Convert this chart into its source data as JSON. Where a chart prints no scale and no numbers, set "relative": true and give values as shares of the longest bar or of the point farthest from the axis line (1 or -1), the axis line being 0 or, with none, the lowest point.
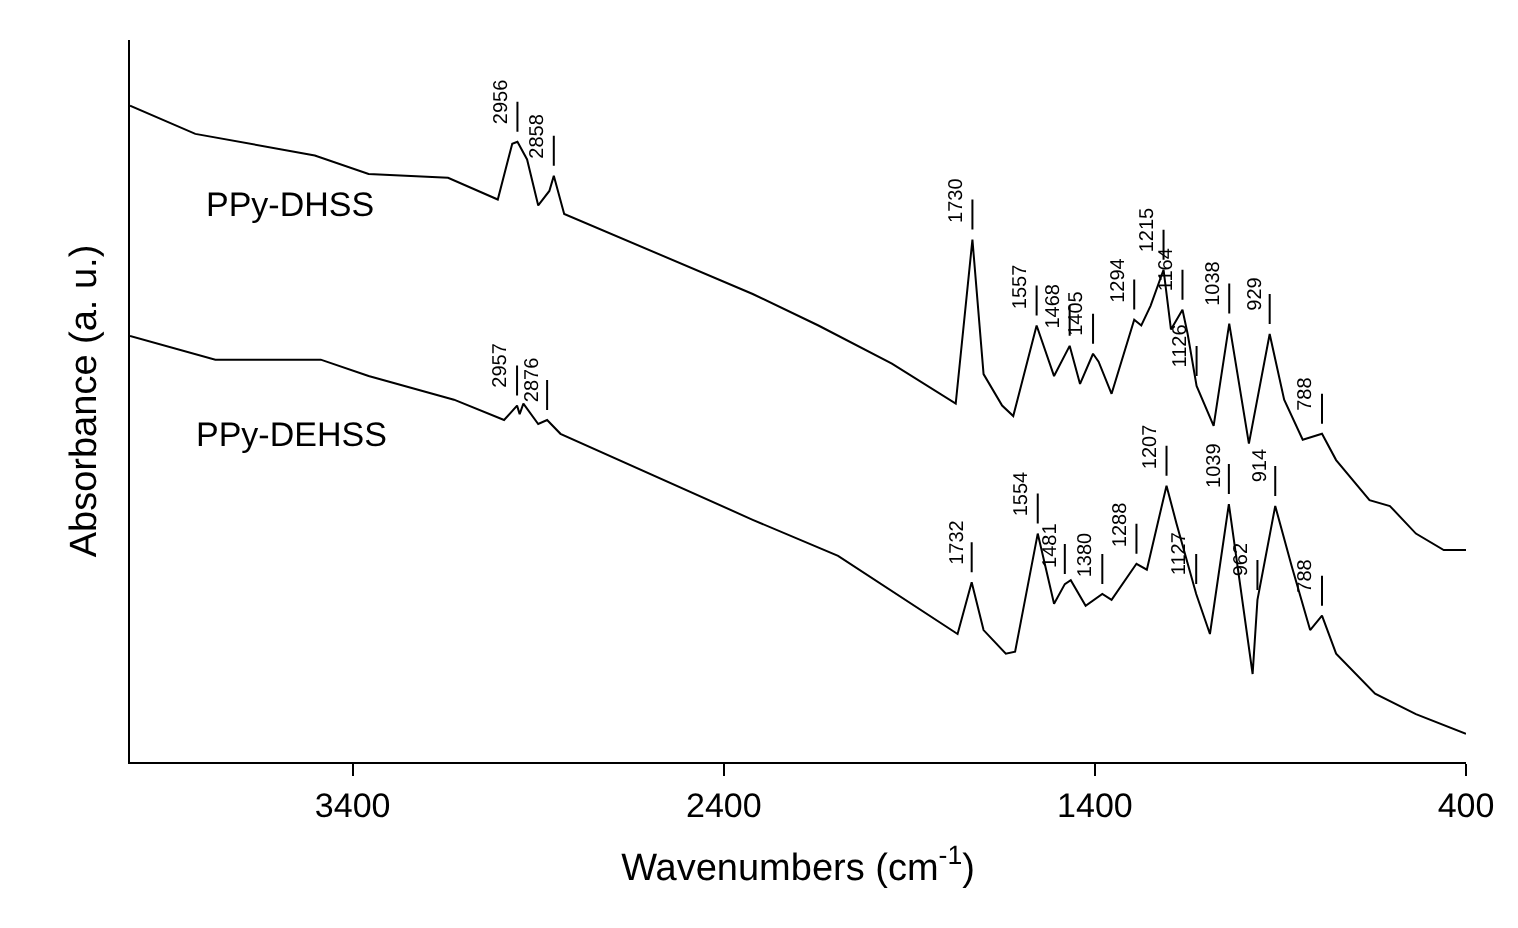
{
  "chart_data": {
    "type": "line",
    "relative": true,
    "xlabel": "Wavenumbers (cm$^{-1}$)",
    "ylabel": "Absorbance (a. u.)",
    "xlim": [
      4000,
      400
    ],
    "xticks": [
      3400,
      2400,
      1400,
      400
    ],
    "legend": false,
    "marker": "none",
    "line_style": "solid",
    "series": [
      {
        "name": "PPy-DHSS",
        "color": "#000000",
        "x": [
          4000,
          3824,
          3502,
          3357,
          3143,
          3009,
          2970,
          2956,
          2930,
          2900,
          2870,
          2858,
          2830,
          2322,
          2145,
          1947,
          1775,
          1730,
          1700,
          1650,
          1620,
          1557,
          1510,
          1468,
          1440,
          1405,
          1390,
          1355,
          1294,
          1275,
          1250,
          1215,
          1195,
          1164,
          1150,
          1126,
          1080,
          1038,
          985,
          929,
          890,
          840,
          788,
          750,
          660,
          605,
          535,
          460,
          400
        ],
        "values": [
          1.0,
          0.957,
          0.924,
          0.896,
          0.89,
          0.857,
          0.942,
          0.945,
          0.918,
          0.848,
          0.87,
          0.893,
          0.835,
          0.713,
          0.665,
          0.607,
          0.546,
          0.796,
          0.591,
          0.543,
          0.527,
          0.665,
          0.588,
          0.634,
          0.576,
          0.622,
          0.61,
          0.561,
          0.674,
          0.665,
          0.695,
          0.75,
          0.659,
          0.689,
          0.652,
          0.573,
          0.512,
          0.668,
          0.485,
          0.652,
          0.552,
          0.491,
          0.5,
          0.46,
          0.399,
          0.39,
          0.348,
          0.323,
          0.323
        ]
      },
      {
        "name": "PPy-DEHSS",
        "color": "#000000",
        "x": [
          4000,
          3770,
          3486,
          3357,
          3127,
          2992,
          2957,
          2950,
          2940,
          2900,
          2876,
          2840,
          2322,
          2092,
          1770,
          1732,
          1700,
          1640,
          1615,
          1554,
          1510,
          1481,
          1465,
          1425,
          1380,
          1355,
          1288,
          1260,
          1207,
          1180,
          1127,
          1090,
          1039,
          975,
          962,
          914,
          870,
          820,
          788,
          750,
          645,
          535,
          400
        ],
        "values": [
          0.649,
          0.613,
          0.613,
          0.588,
          0.552,
          0.521,
          0.543,
          0.53,
          0.546,
          0.515,
          0.521,
          0.5,
          0.369,
          0.314,
          0.195,
          0.274,
          0.201,
          0.165,
          0.168,
          0.348,
          0.241,
          0.271,
          0.277,
          0.238,
          0.256,
          0.247,
          0.302,
          0.293,
          0.421,
          0.363,
          0.256,
          0.195,
          0.393,
          0.134,
          0.247,
          0.39,
          0.299,
          0.201,
          0.223,
          0.165,
          0.104,
          0.073,
          0.043
        ]
      }
    ],
    "annotations": [
      {
        "text": "2956",
        "x": 2956,
        "y": 0.945
      },
      {
        "text": "2858",
        "x": 2858,
        "y": 0.893
      },
      {
        "text": "1730",
        "x": 1730,
        "y": 0.796
      },
      {
        "text": "1557",
        "x": 1557,
        "y": 0.665
      },
      {
        "text": "1468",
        "x": 1468,
        "y": 0.634
      },
      {
        "text": "1405",
        "x": 1405,
        "y": 0.622
      },
      {
        "text": "1294",
        "x": 1294,
        "y": 0.674
      },
      {
        "text": "1215",
        "x": 1215,
        "y": 0.75
      },
      {
        "text": "1164",
        "x": 1164,
        "y": 0.689
      },
      {
        "text": "1126",
        "x": 1126,
        "y": 0.573
      },
      {
        "text": "1038",
        "x": 1038,
        "y": 0.668
      },
      {
        "text": "929",
        "x": 929,
        "y": 0.652
      },
      {
        "text": "788",
        "x": 788,
        "y": 0.5
      },
      {
        "text": "2957",
        "x": 2957,
        "y": 0.543
      },
      {
        "text": "2876",
        "x": 2876,
        "y": 0.521
      },
      {
        "text": "1732",
        "x": 1732,
        "y": 0.274
      },
      {
        "text": "1554",
        "x": 1554,
        "y": 0.348
      },
      {
        "text": "1481",
        "x": 1481,
        "y": 0.271
      },
      {
        "text": "1380",
        "x": 1380,
        "y": 0.256
      },
      {
        "text": "1288",
        "x": 1288,
        "y": 0.302
      },
      {
        "text": "1207",
        "x": 1207,
        "y": 0.421
      },
      {
        "text": "1127",
        "x": 1127,
        "y": 0.256
      },
      {
        "text": "1039",
        "x": 1039,
        "y": 0.393
      },
      {
        "text": "962",
        "x": 962,
        "y": 0.247
      },
      {
        "text": "914",
        "x": 914,
        "y": 0.39
      },
      {
        "text": "788",
        "x": 788,
        "y": 0.223
      }
    ]
  }
}
